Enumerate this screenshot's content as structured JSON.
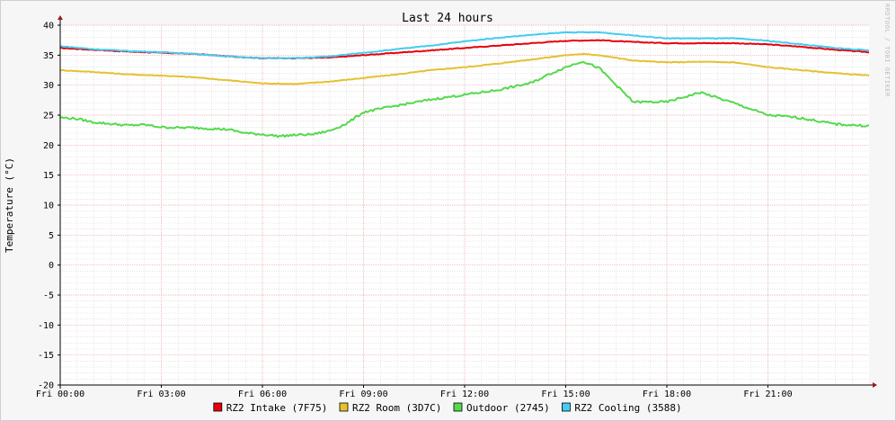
{
  "chart_data": {
    "type": "line",
    "title": "Last 24 hours",
    "ylabel": "Temperature (°C)",
    "watermark": "RRDTOOL / TOBI OETIKER",
    "ylim": [
      -20,
      40
    ],
    "yticks": [
      "40",
      "35",
      "30",
      "25",
      "20",
      "15",
      "10",
      "5",
      "0",
      "-5",
      "-10",
      "-15",
      "-20"
    ],
    "xlim": [
      0,
      24
    ],
    "xticks": [
      {
        "x": 0,
        "label": "Fri 00:00"
      },
      {
        "x": 3,
        "label": "Fri 03:00"
      },
      {
        "x": 6,
        "label": "Fri 06:00"
      },
      {
        "x": 9,
        "label": "Fri 09:00"
      },
      {
        "x": 12,
        "label": "Fri 12:00"
      },
      {
        "x": 15,
        "label": "Fri 15:00"
      },
      {
        "x": 18,
        "label": "Fri 18:00"
      },
      {
        "x": 21,
        "label": "Fri 21:00"
      }
    ],
    "grid": true,
    "legend_position": "bottom",
    "series": [
      {
        "name": "RZ2 Intake (7F75)",
        "color": "#e8000b",
        "x": [
          0,
          1,
          2,
          3,
          4,
          5,
          6,
          7,
          8,
          9,
          10,
          11,
          12,
          13,
          14,
          15,
          16,
          17,
          18,
          19,
          20,
          21,
          22,
          23,
          24
        ],
        "y": [
          36.2,
          35.9,
          35.6,
          35.4,
          35.2,
          34.8,
          34.5,
          34.5,
          34.6,
          35.0,
          35.4,
          35.8,
          36.2,
          36.6,
          37.0,
          37.4,
          37.5,
          37.2,
          37.0,
          37.0,
          37.0,
          36.8,
          36.4,
          35.9,
          35.5
        ]
      },
      {
        "name": "RZ2 Room (3D7C)",
        "color": "#e5c131",
        "x": [
          0,
          1,
          2,
          3,
          4,
          5,
          6,
          7,
          8,
          9,
          10,
          11,
          12,
          13,
          14,
          15,
          15.5,
          16,
          17,
          18,
          19,
          20,
          21,
          22,
          23,
          24
        ],
        "y": [
          32.5,
          32.2,
          31.8,
          31.6,
          31.3,
          30.8,
          30.3,
          30.2,
          30.6,
          31.2,
          31.8,
          32.5,
          33.0,
          33.6,
          34.3,
          35.0,
          35.2,
          35.0,
          34.1,
          33.8,
          33.9,
          33.8,
          33.0,
          32.5,
          32.0,
          31.6
        ]
      },
      {
        "name": "Outdoor (2745)",
        "color": "#54d94c",
        "x": [
          0,
          0.5,
          1,
          2,
          2.5,
          3,
          3.5,
          4,
          5,
          5.5,
          6,
          6.5,
          7,
          7.5,
          8,
          8.5,
          9,
          10,
          11,
          12,
          13,
          14,
          14.5,
          15,
          15.5,
          16,
          16.5,
          17,
          18,
          19,
          20,
          21,
          21.5,
          22,
          23,
          24
        ],
        "y": [
          24.6,
          24.4,
          23.8,
          23.3,
          23.4,
          23.0,
          22.9,
          22.9,
          22.6,
          22.0,
          21.8,
          21.5,
          21.7,
          21.8,
          22.4,
          23.6,
          25.5,
          26.6,
          27.6,
          28.4,
          29.2,
          30.4,
          31.8,
          33.0,
          34.0,
          32.8,
          30.0,
          27.2,
          27.2,
          28.8,
          27.0,
          25.0,
          24.8,
          24.5,
          23.5,
          23.2
        ]
      },
      {
        "name": "RZ2 Cooling (3588)",
        "color": "#45ccf0",
        "x": [
          0,
          1,
          2,
          3,
          4,
          5,
          6,
          7,
          8,
          9,
          10,
          11,
          12,
          13,
          14,
          15,
          16,
          17,
          18,
          19,
          20,
          21,
          22,
          23,
          24
        ],
        "y": [
          36.5,
          36.0,
          35.7,
          35.5,
          35.2,
          34.8,
          34.5,
          34.5,
          34.8,
          35.4,
          36.0,
          36.6,
          37.3,
          37.9,
          38.4,
          38.8,
          38.8,
          38.3,
          37.8,
          37.8,
          37.8,
          37.4,
          36.8,
          36.2,
          35.8
        ]
      }
    ]
  }
}
